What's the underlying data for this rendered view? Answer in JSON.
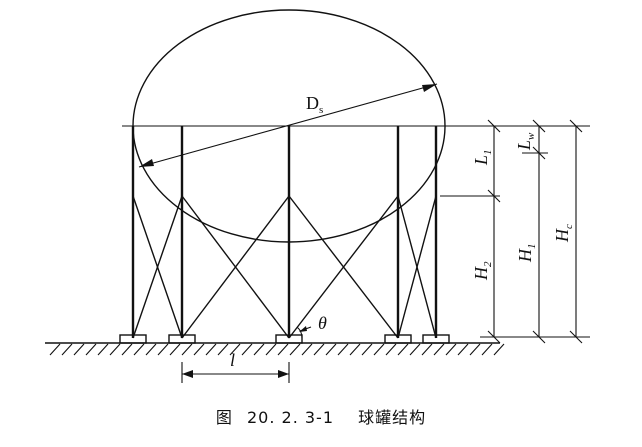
{
  "labels": {
    "diameter": "D",
    "diameter_sub": "s",
    "L1": "L",
    "L1_sub": "1",
    "Lw": "L",
    "Lw_sub": "w",
    "H2": "H",
    "H2_sub": "2",
    "H1": "H",
    "H1_sub": "1",
    "Hc": "H",
    "Hc_sub": "c",
    "theta": "θ",
    "spacing": "l"
  },
  "caption": {
    "prefix": "图",
    "number": "20. 2. 3-1",
    "title": "球罐结构"
  }
}
